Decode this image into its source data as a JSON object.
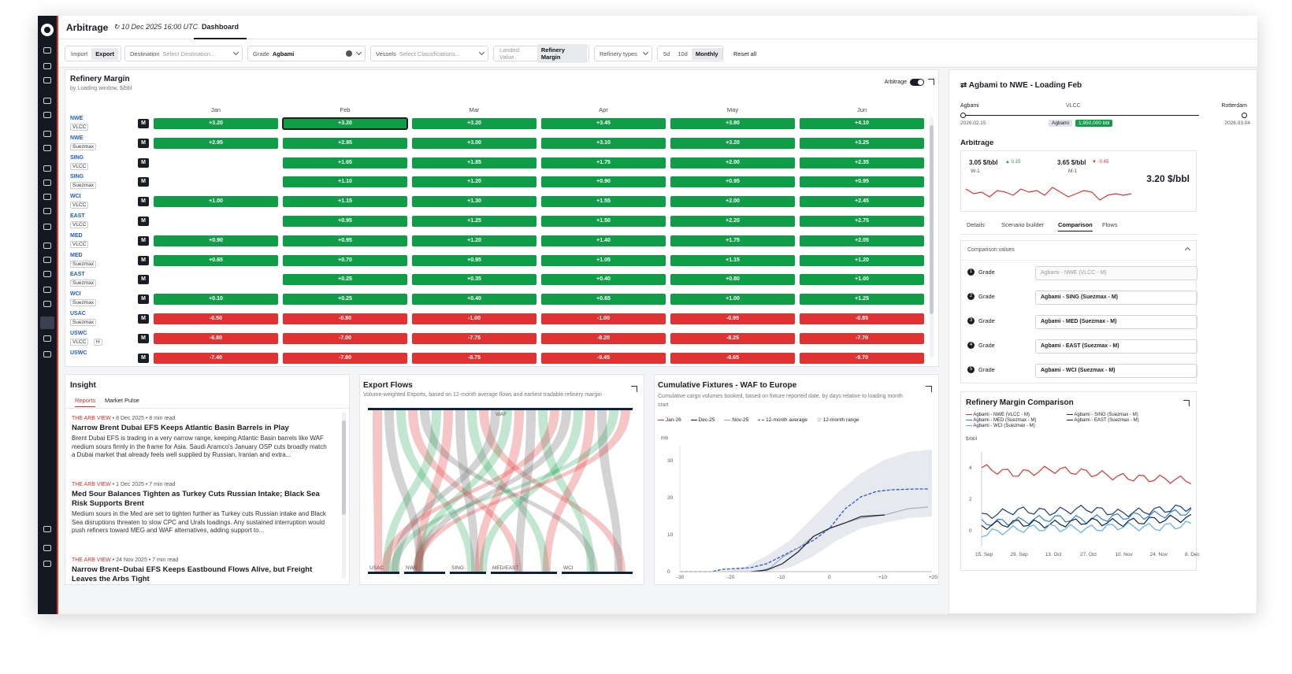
{
  "header": {
    "title": "Arbitrage",
    "timestamp": "10 Dec 2025 16:00 UTC",
    "tab": "Dashboard"
  },
  "filters": {
    "import": "Import",
    "export": "Export",
    "destination_label": "Destination",
    "destination_ph": "Select Destination...",
    "grade_label": "Grade",
    "grade_value": "Agbami",
    "vessels_label": "Vessels",
    "vessels_ph": "Select Classifications...",
    "landed": "Landed Value",
    "refinery": "Refinery Margin",
    "refinery_types": "Refinery types",
    "p5d": "5d",
    "p10d": "10d",
    "monthly": "Monthly",
    "reset": "Reset all"
  },
  "margin": {
    "title": "Refinery Margin",
    "subtitle": "by Loading window, $/bbl",
    "arb_toggle": "Arbitrage",
    "months": [
      "Jan",
      "Feb",
      "Mar",
      "Apr",
      "May",
      "Jun"
    ],
    "m_label": "M",
    "rows": [
      {
        "dest": "NWE",
        "vessel": "VLCC",
        "vals": [
          "+3.20",
          "+3.20",
          "+3.20",
          "+3.45",
          "+3.80",
          "+4.10"
        ]
      },
      {
        "dest": "NWE",
        "vessel": "Suezmax",
        "vals": [
          "+2.95",
          "+2.95",
          "+3.00",
          "+3.10",
          "+3.20",
          "+3.25"
        ]
      },
      {
        "dest": "SING",
        "vessel": "VLCC",
        "vals": [
          "",
          "+1.65",
          "+1.85",
          "+1.75",
          "+2.00",
          "+2.35"
        ]
      },
      {
        "dest": "SING",
        "vessel": "Suezmax",
        "vals": [
          "",
          "+1.10",
          "+1.20",
          "+0.90",
          "+0.95",
          "+0.95"
        ]
      },
      {
        "dest": "WCI",
        "vessel": "VLCC",
        "vals": [
          "+1.00",
          "+1.15",
          "+1.30",
          "+1.55",
          "+2.00",
          "+2.45"
        ]
      },
      {
        "dest": "EAST",
        "vessel": "VLCC",
        "vals": [
          "",
          "+0.95",
          "+1.25",
          "+1.50",
          "+2.20",
          "+2.75"
        ]
      },
      {
        "dest": "MED",
        "vessel": "VLCC",
        "vals": [
          "+0.90",
          "+0.95",
          "+1.20",
          "+1.40",
          "+1.75",
          "+2.05"
        ]
      },
      {
        "dest": "MED",
        "vessel": "Suezmax",
        "vals": [
          "+0.65",
          "+0.70",
          "+0.95",
          "+1.05",
          "+1.15",
          "+1.20"
        ]
      },
      {
        "dest": "EAST",
        "vessel": "Suezmax",
        "vals": [
          "",
          "+0.25",
          "+0.35",
          "+0.40",
          "+0.80",
          "+1.00"
        ]
      },
      {
        "dest": "WCI",
        "vessel": "Suezmax",
        "vals": [
          "+0.10",
          "+0.25",
          "+0.40",
          "+0.65",
          "+1.00",
          "+1.25"
        ]
      },
      {
        "dest": "USAC",
        "vessel": "Suezmax",
        "vals": [
          "-0.50",
          "-0.80",
          "-1.00",
          "-1.00",
          "-0.95",
          "-0.85"
        ]
      },
      {
        "dest": "USWC",
        "vessel": "VLCC",
        "vals": [
          "-6.80",
          "-7.00",
          "-7.75",
          "-8.20",
          "-8.25",
          "-7.70"
        ]
      },
      {
        "dest": "USWC",
        "vessel": "",
        "vals": [
          "-7.40",
          "-7.80",
          "-8.75",
          "-9.45",
          "-8.65",
          "-9.70"
        ]
      }
    ],
    "extra_badge": "H"
  },
  "insight": {
    "title": "Insight",
    "tabs": [
      "Reports",
      "Market Pulse"
    ],
    "articles": [
      {
        "tag": "THE ARB VIEW",
        "meta": " • 8 Dec 2025 • 8 min read",
        "title": "Narrow Brent Dubai EFS Keeps Atlantic Basin Barrels in Play",
        "body": "Brent Dubai EFS is trading in a very narrow range, keeping Atlantic Basin barrels like WAF medium sours firmly in the frame for Asia. Saudi Aramco's January OSP cuts broadly match a Dubai market that already feels well supplied by Russian, Iranian and extra..."
      },
      {
        "tag": "THE ARB VIEW",
        "meta": " • 1 Dec 2025 • 7 min read",
        "title": "Med Sour Balances Tighten as Turkey Cuts Russian Intake; Black Sea Risk Supports Brent",
        "body": "Medium sours in the Med are set to tighten further as Turkey cuts Russian intake and Black Sea disruptions threaten to slow CPC and Urals loadings. Any sustained interruption would push refiners toward MEG and WAF alternatives, adding support to..."
      },
      {
        "tag": "THE ARB VIEW",
        "meta": " • 24 Nov 2025 • 7 min read",
        "title": "Narrow Brent–Dubai EFS Keeps Eastbound Flows Alive, but Freight Leaves the Arbs Tight",
        "body": ""
      }
    ]
  },
  "flows": {
    "title": "Export Flows",
    "subtitle": "Volume-weighted Exports, based on 12-month average flows and earliest tradable refinery margin",
    "top_label": "WAF",
    "bottom_labels": [
      "USAC",
      "NWE",
      "SING",
      "MED/EAST",
      "WCI"
    ]
  },
  "fixtures": {
    "title": "Cumulative Fixtures - WAF to Europe",
    "subtitle": "Cumulative cargo volumes booked, based on fixture reported date, by days relative to loading month start",
    "legend": [
      "Jan-26",
      "Dec-25",
      "Nov-25",
      "12-month average",
      "12-month range"
    ],
    "ylabel": "mb",
    "yticks": [
      "0",
      "10",
      "20",
      "30"
    ],
    "xticks": [
      "-30",
      "-20",
      "-10",
      "0",
      "+10",
      "+20"
    ],
    "colors": {
      "jan": "#e03232",
      "dec": "#1a1d24",
      "nov": "#9aa3b5",
      "avg": "#2d55c8",
      "range": "#e6e9ee"
    }
  },
  "route": {
    "title": "Agbami to NWE - Loading Feb",
    "origin": "Agbami",
    "vessel": "VLCC",
    "dest": "Rotterdam",
    "start": "2026.02.15",
    "end": "2026.03.04",
    "grade_chip": "Agbami",
    "volume_chip": "1,950,000 bbl"
  },
  "arb": {
    "title": "Arbitrage",
    "w1": "3.05 $/bbl",
    "w1_label": "W-1",
    "w1_delta": "▲ 0.15",
    "m1": "3.65 $/bbl",
    "m1_label": "M-1",
    "m1_delta": "▼ -0.45",
    "current": "3.20 $/bbl"
  },
  "tabs": [
    "Details",
    "Scenario builder",
    "Comparison",
    "Flows"
  ],
  "comparison": {
    "title": "Comparison values",
    "grade_label": "Grade",
    "grades": [
      "Agbami - NWE (VLCC - M)",
      "Agbami - SING (Suezmax - M)",
      "Agbami - MED (Suezmax - M)",
      "Agbami - EAST (Suezmax - M)",
      "Agbami - WCI (Suezmax - M)"
    ]
  },
  "rmc": {
    "title": "Refinery Margin Comparison",
    "legend": [
      "Agbami - NWE (VLCC - M)",
      "Agbami - SING (Suezmax - M)",
      "Agbami - MED (Suezmax - M)",
      "Agbami - EAST (Suezmax - M)",
      "Agbami - WCI (Suezmax - M)"
    ],
    "ylabel": "$/bbl",
    "yticks": [
      "0",
      "2",
      "4"
    ],
    "xticks": [
      "15. Sep",
      "29. Sep",
      "13. Oct",
      "27. Oct",
      "10. Nov",
      "24. Nov",
      "8. Dec"
    ],
    "chart_data": {
      "type": "line",
      "title": "Refinery Margin Comparison",
      "ylabel": "$/bbl",
      "ylim": [
        -1,
        5
      ],
      "categories": [
        "15. Sep",
        "29. Sep",
        "13. Oct",
        "27. Oct",
        "10. Nov",
        "24. Nov",
        "8. Dec"
      ],
      "series": [
        {
          "name": "Agbami - NWE (VLCC - M)",
          "values": [
            4.0,
            3.6,
            3.9,
            3.7,
            3.4,
            3.3,
            3.2
          ]
        },
        {
          "name": "Agbami - SING (Suezmax - M)",
          "values": [
            0.9,
            1.3,
            1.2,
            1.4,
            1.1,
            1.3,
            1.5
          ]
        },
        {
          "name": "Agbami - MED (Suezmax - M)",
          "values": [
            0.5,
            0.6,
            0.8,
            0.7,
            0.9,
            1.0,
            1.2
          ]
        },
        {
          "name": "Agbami - EAST (Suezmax - M)",
          "values": [
            0.3,
            0.5,
            0.4,
            0.6,
            0.5,
            0.7,
            0.8
          ]
        },
        {
          "name": "Agbami - WCI (Suezmax - M)",
          "values": [
            -0.2,
            0.1,
            0.2,
            0.1,
            0.3,
            0.2,
            0.4
          ]
        }
      ]
    },
    "colors": [
      "#e03232",
      "#1b3a7a",
      "#2d7dd2",
      "#0c2340",
      "#5ab0e8"
    ]
  }
}
